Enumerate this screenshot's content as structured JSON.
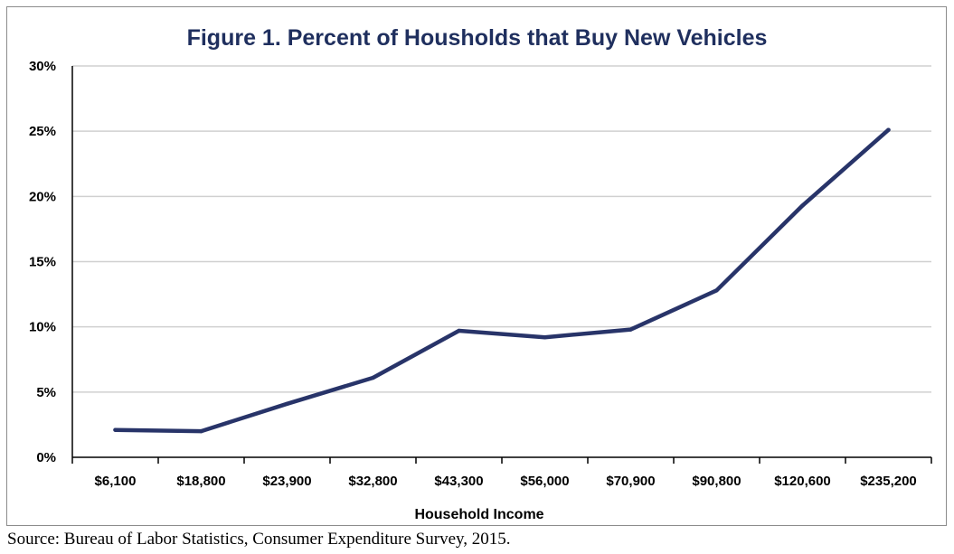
{
  "chart_data": {
    "type": "line",
    "title": "Figure 1. Percent of Housholds that Buy New Vehicles",
    "xlabel": "Household Income",
    "ylabel": "",
    "categories": [
      "$6,100",
      "$18,800",
      "$23,900",
      "$32,800",
      "$43,300",
      "$56,000",
      "$70,900",
      "$90,800",
      "$120,600",
      "$235,200"
    ],
    "series": [
      {
        "values": [
          2.1,
          2.0,
          4.1,
          6.1,
          9.7,
          9.2,
          9.8,
          12.8,
          19.3,
          25.1
        ],
        "color": "#283469"
      }
    ],
    "ylim": [
      0,
      30
    ],
    "yticks": [
      0,
      5,
      10,
      15,
      20,
      25,
      30
    ],
    "ytick_labels": [
      "0%",
      "5%",
      "10%",
      "15%",
      "20%",
      "25%",
      "30%"
    ],
    "grid": true,
    "legend": "none"
  },
  "source": "Source: Bureau of Labor Statistics, Consumer Expenditure Survey, 2015."
}
